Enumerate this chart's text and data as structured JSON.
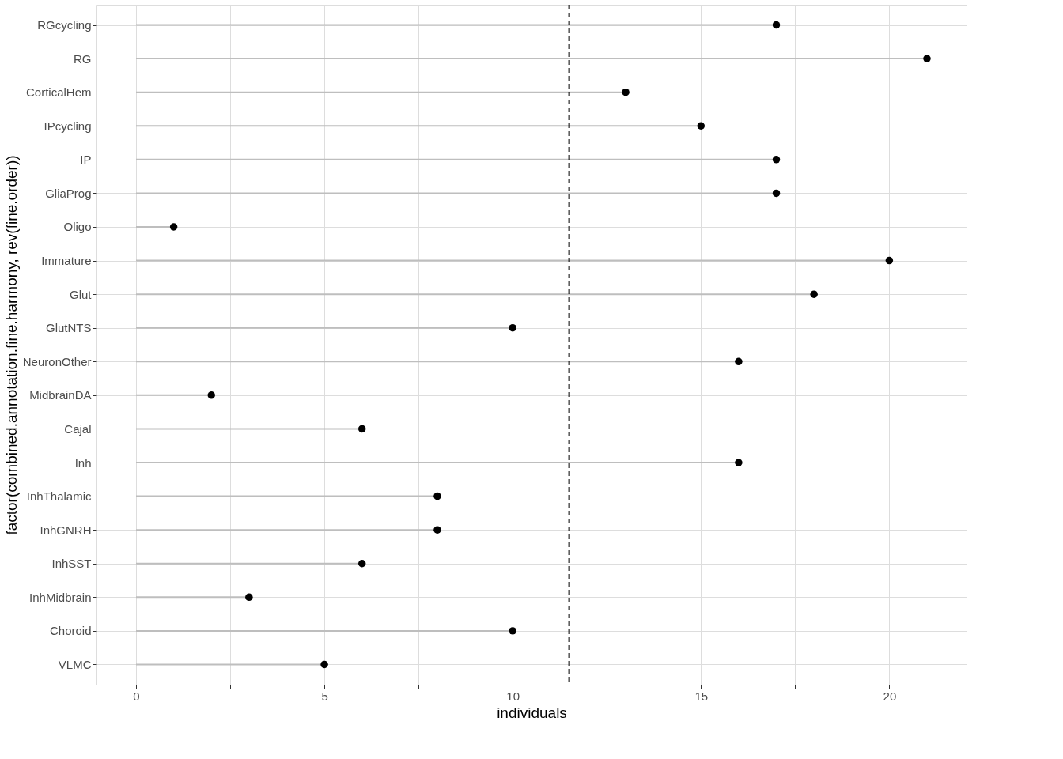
{
  "chart_data": {
    "type": "lollipop",
    "orientation": "horizontal",
    "xlabel": "individuals",
    "ylabel": "factor(combined.annotation.fine.harmony, rev(fine.order))",
    "categories": [
      "RGcycling",
      "RG",
      "CorticalHem",
      "IPcycling",
      "IP",
      "GliaProg",
      "Oligo",
      "Immature",
      "Glut",
      "GlutNTS",
      "NeuronOther",
      "MidbrainDA",
      "Cajal",
      "Inh",
      "InhThalamic",
      "InhGNRH",
      "InhSST",
      "InhMidbrain",
      "Choroid",
      "VLMC"
    ],
    "series": [
      {
        "color": "#000000",
        "values": [
          17,
          21,
          13,
          15,
          17,
          17,
          1,
          20,
          18,
          10,
          16,
          2,
          6,
          16,
          8,
          8,
          6,
          3,
          10,
          5
        ]
      }
    ],
    "xlim": [
      -1.05,
      22.05
    ],
    "xticks": [
      0,
      {
        "value": 2.5,
        "label": null
      },
      5,
      {
        "value": 7.5,
        "label": null
      },
      10,
      {
        "value": 12.5,
        "label": null
      },
      15,
      {
        "value": 17.5,
        "label": null
      },
      20
    ],
    "ref_lines": [
      {
        "axis": "x",
        "value": 11.5,
        "color": "#000000",
        "line_style": "dashed"
      }
    ],
    "grid": true,
    "marker": "circle"
  }
}
